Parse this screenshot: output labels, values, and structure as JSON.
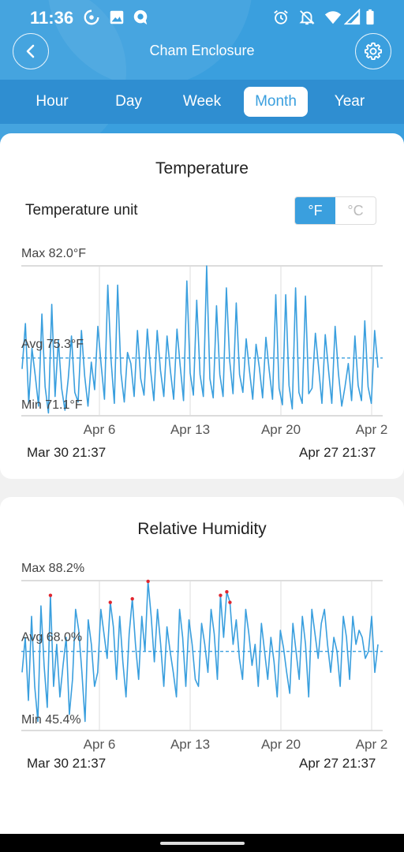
{
  "status_bar": {
    "time": "11:36",
    "icons": [
      "sync-icon",
      "image-icon",
      "chat-icon",
      "alarm-icon",
      "notifications-off-icon",
      "wifi-icon",
      "signal-icon",
      "battery-icon"
    ]
  },
  "header": {
    "title": "Cham Enclosure",
    "back_icon": "back-arrow-icon",
    "settings_icon": "gear-icon"
  },
  "tabs": [
    {
      "label": "Hour",
      "active": false
    },
    {
      "label": "Day",
      "active": false
    },
    {
      "label": "Week",
      "active": false
    },
    {
      "label": "Month",
      "active": true
    },
    {
      "label": "Year",
      "active": false
    }
  ],
  "temperature": {
    "title": "Temperature",
    "unit_label": "Temperature unit",
    "unit_options": [
      "°F",
      "°C"
    ],
    "selected_unit": "°F",
    "range_start": "Mar 30 21:37",
    "range_end": "Apr 27 21:37"
  },
  "humidity": {
    "title": "Relative Humidity",
    "range_start": "Mar 30 21:37",
    "range_end": "Apr 27 21:37"
  },
  "colors": {
    "accent": "#3a9fde",
    "line": "#3a9fde",
    "alert": "#e0262f"
  },
  "chart_data": [
    {
      "type": "line",
      "title": "Temperature",
      "x_tick_labels": [
        "Apr 6",
        "Apr 13",
        "Apr 20",
        "Apr 2"
      ],
      "x_range": [
        "Mar 30 21:37",
        "Apr 27 21:37"
      ],
      "max_label": "Max 82.0°F",
      "avg_label": "Avg 75.3°F",
      "min_label": "Min 71.1°F",
      "ylim": [
        71.1,
        82.0
      ],
      "avg": 75.3,
      "grid": true,
      "series": [
        {
          "points_per_day": 4,
          "values": [
            74.5,
            77.8,
            72.0,
            76.0,
            74.0,
            71.8,
            78.5,
            73.2,
            71.3,
            79.2,
            72.5,
            76.6,
            73.1,
            71.5,
            73.8,
            76.9,
            72.8,
            72.1,
            77.3,
            74.0,
            71.8,
            75.0,
            73.0,
            77.6,
            74.8,
            72.3,
            80.6,
            75.1,
            72.0,
            80.6,
            74.2,
            72.1,
            75.7,
            74.9,
            72.5,
            77.3,
            73.8,
            72.6,
            77.4,
            74.4,
            72.2,
            77.3,
            74.4,
            72.5,
            76.9,
            74.4,
            72.3,
            77.4,
            74.7,
            72.2,
            80.9,
            74.2,
            72.6,
            79.5,
            74.1,
            72.5,
            82.0,
            73.8,
            72.4,
            79.1,
            74.1,
            72.5,
            80.4,
            75.1,
            72.7,
            79.3,
            74.1,
            72.8,
            76.7,
            74.4,
            72.3,
            76.3,
            74.6,
            72.4,
            76.8,
            74.4,
            72.3,
            79.9,
            73.1,
            71.9,
            79.9,
            73.3,
            71.6,
            80.4,
            72.8,
            72.0,
            79.8,
            72.7,
            73.1,
            77.1,
            74.6,
            72.0,
            77.0,
            74.4,
            72.0,
            77.6,
            74.2,
            71.8,
            73.2,
            74.9,
            72.2,
            76.9,
            73.3,
            72.2,
            78.0,
            73.2,
            72.0,
            77.3,
            74.6
          ]
        }
      ]
    },
    {
      "type": "line",
      "title": "Relative Humidity",
      "x_tick_labels": [
        "Apr 6",
        "Apr 13",
        "Apr 20",
        "Apr 2"
      ],
      "x_range": [
        "Mar 30 21:37",
        "Apr 27 21:37"
      ],
      "max_label": "Max 88.2%",
      "avg_label": "Avg 68.0%",
      "min_label": "Min 45.4%",
      "ylim": [
        45.4,
        88.2
      ],
      "avg": 68.0,
      "grid": true,
      "series": [
        {
          "points_per_day": 4,
          "values": [
            62,
            72,
            54,
            78,
            58,
            48,
            81,
            64,
            52,
            84,
            58,
            70,
            55,
            64,
            72,
            50,
            60,
            80,
            74,
            62,
            48,
            77,
            70,
            58,
            62,
            80,
            73,
            66,
            82,
            75,
            60,
            78,
            65,
            55,
            73,
            83,
            70,
            60,
            78,
            68,
            88,
            78,
            65,
            80,
            70,
            58,
            75,
            68,
            62,
            55,
            80,
            72,
            58,
            77,
            70,
            60,
            58,
            76,
            70,
            62,
            80,
            73,
            60,
            84,
            72,
            85,
            82,
            70,
            77,
            66,
            60,
            80,
            73,
            64,
            70,
            58,
            76,
            68,
            60,
            72,
            65,
            55,
            74,
            69,
            62,
            56,
            76,
            68,
            60,
            78,
            70,
            55,
            80,
            73,
            66,
            76,
            80,
            70,
            62,
            72,
            68,
            58,
            78,
            72,
            60,
            78,
            70,
            74,
            72,
            66,
            68,
            78,
            62,
            70
          ]
        }
      ]
    }
  ]
}
